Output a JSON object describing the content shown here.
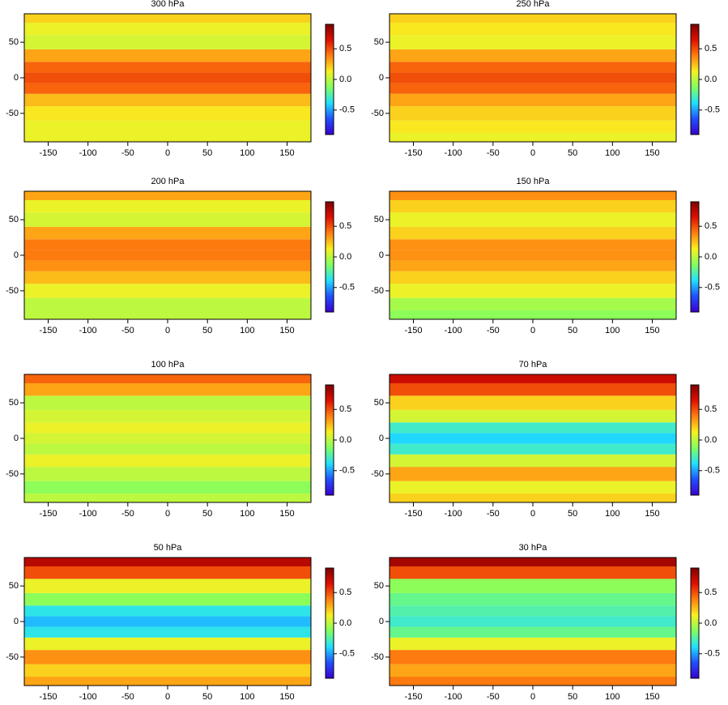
{
  "chart_data": [
    {
      "type": "heatmap",
      "title": "300 hPa",
      "lat": [
        -85,
        -70,
        -50,
        -30,
        -15,
        0,
        15,
        30,
        50,
        70,
        85
      ],
      "values": [
        0.1,
        0.1,
        0.15,
        0.25,
        0.45,
        0.5,
        0.45,
        0.3,
        0.05,
        0.1,
        0.2
      ],
      "xlim": [
        -180,
        180
      ],
      "ylim": [
        -90,
        90
      ],
      "xticks": [
        -150,
        -100,
        -50,
        0,
        50,
        100,
        150
      ],
      "yticks": [
        -50,
        0,
        50
      ],
      "zlim": [
        -0.9,
        0.9
      ],
      "zticks": [
        -0.5,
        {
          "value": 0,
          "label": "0.0"
        },
        0.5
      ],
      "colormap": [
        "#3a00d0",
        "#2050ff",
        "#20e0ff",
        "#80ff60",
        "#f8f020",
        "#ff8010",
        "#e01000",
        "#800000"
      ]
    },
    {
      "type": "heatmap",
      "title": "250 hPa",
      "lat": [
        -85,
        -70,
        -50,
        -30,
        -15,
        0,
        15,
        30,
        50,
        70,
        85
      ],
      "values": [
        0.1,
        0.15,
        0.2,
        0.3,
        0.45,
        0.5,
        0.45,
        0.3,
        0.1,
        0.15,
        0.2
      ],
      "xlim": [
        -180,
        180
      ],
      "ylim": [
        -90,
        90
      ],
      "xticks": [
        -150,
        -100,
        -50,
        0,
        50,
        100,
        150
      ],
      "yticks": [
        -50,
        0,
        50
      ],
      "zlim": [
        -0.9,
        0.9
      ],
      "zticks": [
        -0.5,
        {
          "value": 0,
          "label": "0.0"
        },
        0.5
      ],
      "colormap": [
        "#3a00d0",
        "#2050ff",
        "#20e0ff",
        "#80ff60",
        "#f8f020",
        "#ff8010",
        "#e01000",
        "#800000"
      ]
    },
    {
      "type": "heatmap",
      "title": "200 hPa",
      "lat": [
        -85,
        -70,
        -50,
        -30,
        -15,
        0,
        15,
        30,
        50,
        70,
        85
      ],
      "values": [
        0,
        0,
        0.1,
        0.25,
        0.35,
        0.4,
        0.4,
        0.3,
        0.05,
        0.1,
        0.3
      ],
      "xlim": [
        -180,
        180
      ],
      "ylim": [
        -90,
        90
      ],
      "xticks": [
        -150,
        -100,
        -50,
        0,
        50,
        100,
        150
      ],
      "yticks": [
        -50,
        0,
        50
      ],
      "zlim": [
        -0.9,
        0.9
      ],
      "zticks": [
        -0.5,
        {
          "value": 0,
          "label": "0.0"
        },
        0.5
      ],
      "colormap": [
        "#3a00d0",
        "#2050ff",
        "#20e0ff",
        "#80ff60",
        "#f8f020",
        "#ff8010",
        "#e01000",
        "#800000"
      ]
    },
    {
      "type": "heatmap",
      "title": "150 hPa",
      "lat": [
        -85,
        -70,
        -50,
        -30,
        -15,
        0,
        15,
        30,
        50,
        70,
        85
      ],
      "values": [
        -0.1,
        -0.05,
        0.1,
        0.2,
        0.3,
        0.35,
        0.35,
        0.2,
        0.1,
        0.2,
        0.35
      ],
      "xlim": [
        -180,
        180
      ],
      "ylim": [
        -90,
        90
      ],
      "xticks": [
        -150,
        -100,
        -50,
        0,
        50,
        100,
        150
      ],
      "yticks": [
        -50,
        0,
        50
      ],
      "zlim": [
        -0.9,
        0.9
      ],
      "zticks": [
        -0.5,
        {
          "value": 0,
          "label": "0.0"
        },
        0.5
      ],
      "colormap": [
        "#3a00d0",
        "#2050ff",
        "#20e0ff",
        "#80ff60",
        "#f8f020",
        "#ff8010",
        "#e01000",
        "#800000"
      ]
    },
    {
      "type": "heatmap",
      "title": "100 hPa",
      "lat": [
        -85,
        -70,
        -50,
        -30,
        -15,
        0,
        15,
        30,
        50,
        70,
        85
      ],
      "values": [
        0,
        -0.1,
        0,
        0.1,
        0,
        0.05,
        0.1,
        0.05,
        0,
        0.3,
        0.45
      ],
      "xlim": [
        -180,
        180
      ],
      "ylim": [
        -90,
        90
      ],
      "xticks": [
        -150,
        -100,
        -50,
        0,
        50,
        100,
        150
      ],
      "yticks": [
        -50,
        0,
        50
      ],
      "zlim": [
        -0.9,
        0.9
      ],
      "zticks": [
        -0.5,
        {
          "value": 0,
          "label": "0.0"
        },
        0.5
      ],
      "colormap": [
        "#3a00d0",
        "#2050ff",
        "#20e0ff",
        "#80ff60",
        "#f8f020",
        "#ff8010",
        "#e01000",
        "#800000"
      ]
    },
    {
      "type": "heatmap",
      "title": "70 hPa",
      "lat": [
        -85,
        -70,
        -50,
        -30,
        -15,
        0,
        15,
        30,
        50,
        70,
        85
      ],
      "values": [
        0.2,
        0.1,
        0.3,
        0.05,
        -0.3,
        -0.4,
        -0.3,
        0.05,
        0.2,
        0.5,
        0.7
      ],
      "xlim": [
        -180,
        180
      ],
      "ylim": [
        -90,
        90
      ],
      "xticks": [
        -150,
        -100,
        -50,
        0,
        50,
        100,
        150
      ],
      "yticks": [
        -50,
        0,
        50
      ],
      "zlim": [
        -0.9,
        0.9
      ],
      "zticks": [
        -0.5,
        {
          "value": 0,
          "label": "0.0"
        },
        0.5
      ],
      "colormap": [
        "#3a00d0",
        "#2050ff",
        "#20e0ff",
        "#80ff60",
        "#f8f020",
        "#ff8010",
        "#e01000",
        "#800000"
      ]
    },
    {
      "type": "heatmap",
      "title": "50 hPa",
      "lat": [
        -85,
        -70,
        -50,
        -30,
        -15,
        0,
        15,
        30,
        50,
        70,
        85
      ],
      "values": [
        0.3,
        0.2,
        0.35,
        0.1,
        -0.35,
        -0.45,
        -0.35,
        -0.1,
        0.1,
        0.5,
        0.75
      ],
      "xlim": [
        -180,
        180
      ],
      "ylim": [
        -90,
        90
      ],
      "xticks": [
        -150,
        -100,
        -50,
        0,
        50,
        100,
        150
      ],
      "yticks": [
        -50,
        0,
        50
      ],
      "zlim": [
        -0.9,
        0.9
      ],
      "zticks": [
        -0.5,
        {
          "value": 0,
          "label": "0.0"
        },
        0.5
      ],
      "colormap": [
        "#3a00d0",
        "#2050ff",
        "#20e0ff",
        "#80ff60",
        "#f8f020",
        "#ff8010",
        "#e01000",
        "#800000"
      ]
    },
    {
      "type": "heatmap",
      "title": "30 hPa",
      "lat": [
        -85,
        -70,
        -50,
        -30,
        -15,
        0,
        15,
        30,
        50,
        70,
        85
      ],
      "values": [
        0.4,
        0.3,
        0.4,
        0.1,
        -0.2,
        -0.3,
        -0.25,
        -0.2,
        -0.1,
        0.5,
        0.8
      ],
      "xlim": [
        -180,
        180
      ],
      "ylim": [
        -90,
        90
      ],
      "xticks": [
        -150,
        -100,
        -50,
        0,
        50,
        100,
        150
      ],
      "yticks": [
        -50,
        0,
        50
      ],
      "zlim": [
        -0.9,
        0.9
      ],
      "zticks": [
        -0.5,
        {
          "value": 0,
          "label": "0.0"
        },
        0.5
      ],
      "colormap": [
        "#3a00d0",
        "#2050ff",
        "#20e0ff",
        "#80ff60",
        "#f8f020",
        "#ff8010",
        "#e01000",
        "#800000"
      ]
    }
  ]
}
